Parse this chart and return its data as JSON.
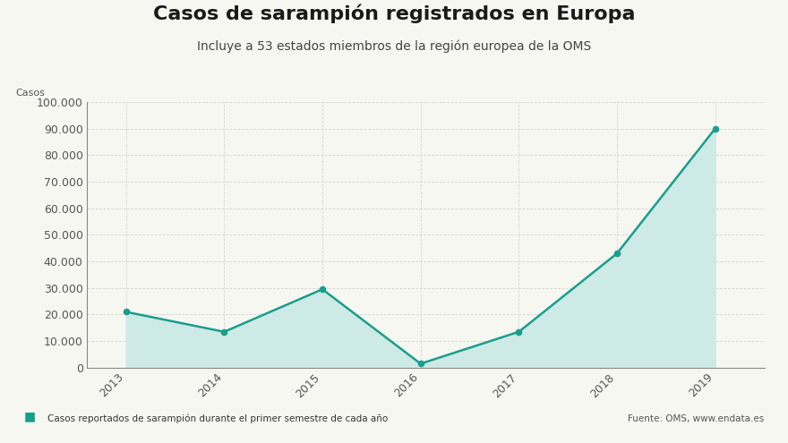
{
  "title": "Casos de sarampión registrados en Europa",
  "subtitle": "Incluye a 53 estados miembros de la región europea de la OMS",
  "ylabel": "Casos",
  "years": [
    2013,
    2014,
    2015,
    2016,
    2017,
    2018,
    2019
  ],
  "values": [
    21000,
    13500,
    29500,
    1500,
    13500,
    43000,
    90000
  ],
  "line_color": "#1a9e8c",
  "fill_color": "#ceeae6",
  "marker_color": "#1a9e8c",
  "background_color": "#f7f7f2",
  "grid_color": "#cccccc",
  "ylim": [
    0,
    100000
  ],
  "yticks": [
    0,
    10000,
    20000,
    30000,
    40000,
    50000,
    60000,
    70000,
    80000,
    90000,
    100000
  ],
  "legend_text": "Casos reportados de sarampión durante el primer semestre de cada año",
  "source_text": "Fuente: OMS, www.endata.es",
  "title_fontsize": 16,
  "subtitle_fontsize": 10,
  "tick_fontsize": 9,
  "ylabel_fontsize": 8
}
